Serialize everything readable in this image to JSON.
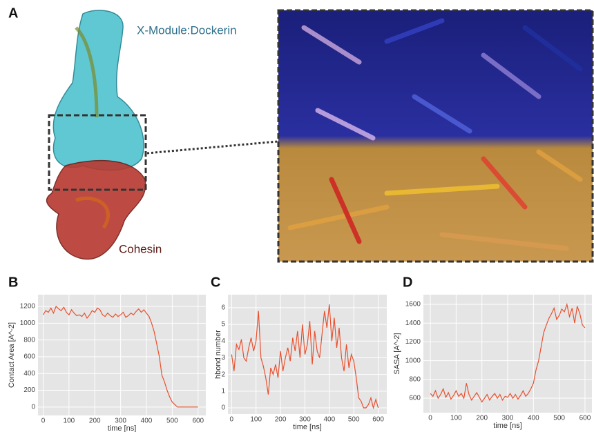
{
  "panel_a": {
    "label": "A",
    "top_label": "X-Module:Dockerin",
    "bottom_label": "Cohesin"
  },
  "chart_data": [
    {
      "type": "line",
      "panel_label": "B",
      "xlabel": "time [ns]",
      "ylabel": "Contact Area [A^-2]",
      "color": "#e8502e",
      "grid": true,
      "xlim": [
        -20,
        630
      ],
      "ylim": [
        -100,
        1340
      ],
      "xticks": [
        0,
        100,
        200,
        300,
        400,
        500,
        600
      ],
      "yticks": [
        0,
        200,
        400,
        600,
        800,
        1000,
        1200
      ],
      "x": [
        0,
        10,
        20,
        30,
        40,
        50,
        60,
        70,
        80,
        90,
        100,
        110,
        120,
        130,
        140,
        150,
        160,
        170,
        180,
        190,
        200,
        210,
        220,
        230,
        240,
        250,
        260,
        270,
        280,
        290,
        300,
        310,
        320,
        330,
        340,
        350,
        360,
        370,
        380,
        390,
        400,
        410,
        420,
        430,
        440,
        450,
        460,
        470,
        480,
        490,
        500,
        510,
        520,
        530,
        540,
        550,
        560,
        570,
        580,
        590,
        600
      ],
      "values": [
        1100,
        1150,
        1130,
        1180,
        1120,
        1200,
        1170,
        1150,
        1190,
        1130,
        1100,
        1160,
        1120,
        1090,
        1100,
        1080,
        1120,
        1060,
        1100,
        1150,
        1130,
        1180,
        1160,
        1100,
        1080,
        1120,
        1090,
        1070,
        1110,
        1080,
        1100,
        1130,
        1070,
        1090,
        1120,
        1100,
        1140,
        1170,
        1130,
        1160,
        1120,
        1080,
        1000,
        900,
        750,
        600,
        380,
        300,
        200,
        120,
        60,
        30,
        0,
        0,
        0,
        0,
        0,
        0,
        0,
        0,
        0
      ]
    },
    {
      "type": "line",
      "panel_label": "C",
      "xlabel": "time [ns]",
      "ylabel": "hbond number",
      "color": "#e8502e",
      "grid": true,
      "xlim": [
        -15,
        635
      ],
      "ylim": [
        -0.37,
        6.78
      ],
      "xticks": [
        0,
        100,
        200,
        300,
        400,
        500,
        600
      ],
      "yticks": [
        0,
        1,
        2,
        3,
        4,
        5,
        6
      ],
      "x": [
        0,
        10,
        20,
        30,
        40,
        50,
        60,
        70,
        80,
        90,
        100,
        110,
        120,
        130,
        140,
        150,
        160,
        170,
        180,
        190,
        200,
        210,
        220,
        230,
        240,
        250,
        260,
        270,
        280,
        290,
        300,
        310,
        320,
        330,
        340,
        350,
        360,
        370,
        380,
        390,
        400,
        410,
        420,
        430,
        440,
        450,
        460,
        470,
        480,
        490,
        500,
        510,
        520,
        530,
        540,
        550,
        560,
        570,
        580,
        590,
        600
      ],
      "values": [
        3.2,
        2.2,
        3.8,
        3.5,
        4.1,
        3.0,
        2.8,
        3.6,
        4.2,
        3.4,
        4.0,
        5.8,
        3.0,
        2.5,
        1.8,
        0.8,
        2.4,
        2.0,
        2.6,
        1.8,
        3.4,
        2.2,
        3.0,
        3.6,
        2.8,
        4.2,
        3.4,
        4.6,
        3.0,
        5.0,
        3.2,
        3.8,
        5.2,
        2.6,
        4.6,
        3.4,
        3.0,
        4.4,
        5.8,
        4.8,
        6.2,
        4.0,
        5.4,
        3.6,
        4.8,
        3.0,
        2.2,
        3.8,
        2.4,
        3.2,
        2.8,
        1.8,
        0.6,
        0.4,
        0.0,
        0.0,
        0.2,
        0.6,
        0.0,
        0.5,
        0.0
      ]
    },
    {
      "type": "line",
      "panel_label": "D",
      "xlabel": "time [ns]",
      "ylabel": "SASA [A^-2]",
      "color": "#e8502e",
      "grid": true,
      "xlim": [
        -27,
        627
      ],
      "ylim": [
        446,
        1703
      ],
      "xticks": [
        0,
        100,
        200,
        300,
        400,
        500,
        600
      ],
      "yticks": [
        600,
        800,
        1000,
        1200,
        1400,
        1600
      ],
      "x": [
        0,
        10,
        20,
        30,
        40,
        50,
        60,
        70,
        80,
        90,
        100,
        110,
        120,
        130,
        140,
        150,
        160,
        170,
        180,
        190,
        200,
        210,
        220,
        230,
        240,
        250,
        260,
        270,
        280,
        290,
        300,
        310,
        320,
        330,
        340,
        350,
        360,
        370,
        380,
        390,
        400,
        410,
        420,
        430,
        440,
        450,
        460,
        470,
        480,
        490,
        500,
        510,
        520,
        530,
        540,
        550,
        560,
        570,
        580,
        590,
        600
      ],
      "values": [
        650,
        620,
        680,
        600,
        640,
        700,
        610,
        660,
        590,
        630,
        680,
        620,
        650,
        600,
        760,
        640,
        580,
        620,
        660,
        610,
        560,
        600,
        640,
        580,
        620,
        650,
        600,
        640,
        580,
        620,
        610,
        650,
        600,
        640,
        590,
        630,
        680,
        620,
        650,
        700,
        760,
        900,
        1000,
        1150,
        1300,
        1380,
        1450,
        1500,
        1560,
        1440,
        1480,
        1550,
        1520,
        1600,
        1470,
        1560,
        1400,
        1580,
        1500,
        1380,
        1350
      ]
    }
  ]
}
